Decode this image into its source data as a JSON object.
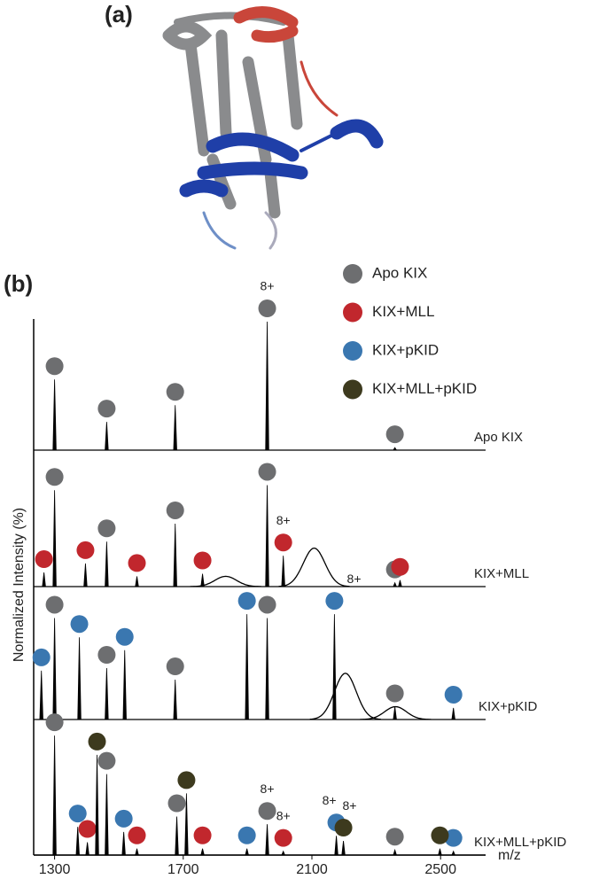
{
  "figure_labels": {
    "a": "(a)",
    "b": "(b)"
  },
  "chart_data": {
    "type": "stacked-spectra",
    "x_label": "m/z",
    "y_label": "Normalized Intensity (%)",
    "xlim": [
      1235,
      2640
    ],
    "xticks": [
      1300,
      1700,
      2100,
      2500
    ],
    "ylim": [
      0,
      100
    ],
    "series": [
      {
        "name": "Apo KIX",
        "color": "#6d6e70"
      },
      {
        "name": "KIX+MLL",
        "color": "#c1272d"
      },
      {
        "name": "KIX+pKID",
        "color": "#3a77b0"
      },
      {
        "name": "KIX+MLL+pKID",
        "color": "#3d3a1e"
      }
    ],
    "panels": [
      {
        "label": "Apo KIX",
        "peaks": [
          {
            "x": [
              1300,
              1462,
              1675,
              1961,
              2358
            ],
            "values": [
              55,
              22,
              35,
              100,
              2
            ]
          },
          {
            "x": [],
            "values": []
          },
          {
            "x": [],
            "values": []
          },
          {
            "x": [],
            "values": []
          }
        ],
        "humps": {
          "x": [],
          "values": []
        },
        "annotations": [
          {
            "text": "8+",
            "x": 1961
          }
        ]
      },
      {
        "label": "KIX+MLL",
        "peaks": [
          {
            "x": [
              1300,
              1462,
              1675,
              1961,
              2358
            ],
            "values": [
              75,
              35,
              49,
              79,
              3
            ]
          },
          {
            "x": [
              1267,
              1396,
              1556,
              1760,
              2011,
              2374
            ],
            "values": [
              11,
              18,
              8,
              10,
              24,
              5
            ]
          },
          {
            "x": [],
            "values": []
          },
          {
            "x": [],
            "values": []
          }
        ],
        "humps": {
          "x": [
            1832,
            2107
          ],
          "values": [
            8,
            30
          ]
        },
        "annotations": [
          {
            "text": "8+",
            "x": 2011
          }
        ]
      },
      {
        "label": "KIX+pKID",
        "peaks": [
          {
            "x": [
              1300,
              1462,
              1675,
              1961,
              2358
            ],
            "values": [
              79,
              40,
              31,
              79,
              10
            ]
          },
          {
            "x": [],
            "values": []
          },
          {
            "x": [
              1259,
              1377,
              1518,
              1898,
              2170,
              2540
            ],
            "values": [
              38,
              64,
              54,
              82,
              82,
              9
            ]
          },
          {
            "x": [],
            "values": []
          }
        ],
        "humps": {
          "x": [
            2204,
            2360
          ],
          "values": [
            36,
            10
          ]
        },
        "annotations": [
          {
            "text": "8+",
            "x": 2231
          }
        ]
      },
      {
        "label": "KIX+MLL+pKID",
        "peaks": [
          {
            "x": [
              1300,
              1462,
              1680,
              1961,
              2358
            ],
            "values": [
              93,
              63,
              30,
              24,
              4
            ]
          },
          {
            "x": [
              1402,
              1556,
              1760,
              2011
            ],
            "values": [
              10,
              5,
              5,
              3
            ]
          },
          {
            "x": [
              1372,
              1515,
              1898,
              2176,
              2540
            ],
            "values": [
              22,
              18,
              5,
              15,
              3
            ]
          },
          {
            "x": [
              1432,
              1710,
              2198,
              2498
            ],
            "values": [
              78,
              48,
              11,
              5
            ]
          }
        ],
        "humps": {
          "x": [],
          "values": []
        },
        "annotations": [
          {
            "text": "8+",
            "x": 1961
          },
          {
            "text": "8+",
            "x": 2011
          },
          {
            "text": "8+",
            "x": 2154
          },
          {
            "text": "8+",
            "x": 2217
          }
        ]
      }
    ]
  }
}
